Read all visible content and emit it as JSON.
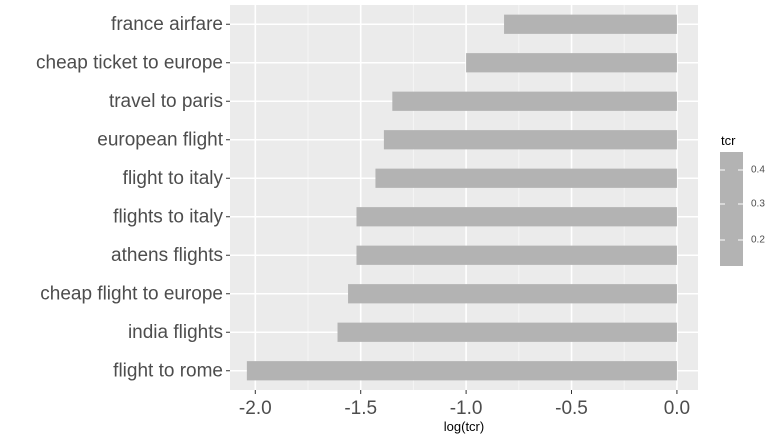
{
  "chart_data": {
    "type": "bar",
    "orientation": "horizontal",
    "categories": [
      "france airfare",
      "cheap ticket to europe",
      "travel to paris",
      "european flight",
      "flight to italy",
      "flights to italy",
      "athens flights",
      "cheap flight to europe",
      "india flights",
      "flight to rome"
    ],
    "values": [
      -0.82,
      -1.0,
      -1.35,
      -1.39,
      -1.43,
      -1.52,
      -1.52,
      -1.56,
      -1.61,
      -2.04
    ],
    "xlabel": "log(tcr)",
    "ylabel": "",
    "xlim": [
      -2.12,
      0.1
    ],
    "xticks": [
      -2.0,
      -1.5,
      -1.0,
      -0.5,
      0.0
    ],
    "xtick_labels": [
      "-2.0",
      "-1.5",
      "-1.0",
      "-0.5",
      "0.0"
    ],
    "grid": true,
    "bar_color": "#b3b3b3",
    "panel_color": "#ebebeb",
    "legend": {
      "title": "tcr",
      "placement": "right",
      "labels": [
        "0.4",
        "0.3",
        "0.2"
      ],
      "color": "#b3b3b3"
    }
  }
}
